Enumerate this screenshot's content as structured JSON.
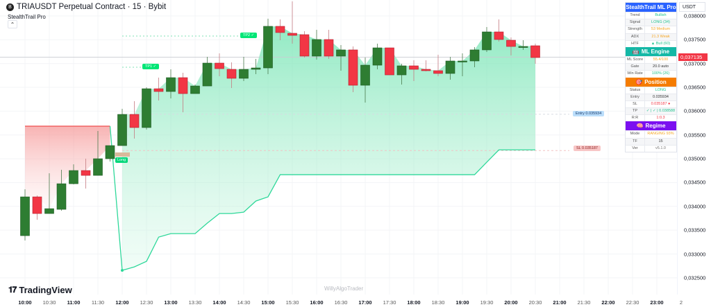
{
  "header": {
    "symbol_icon": "bybit-logo-icon",
    "title": "TRIAUSDT Perpetual Contract · 15 · Bybit",
    "indicator": "StealthTrail Pro",
    "collapse_icon": "chevron-up-icon"
  },
  "branding": {
    "logo": "TradingView",
    "watermark": "WillyAlgoTrader"
  },
  "price_axis": {
    "currency": "USDT",
    "labels": [
      "0,038000",
      "0,037500",
      "0,037000",
      "0,036500",
      "0,036000",
      "0,035500",
      "0,035000",
      "0,034500",
      "0,034000",
      "0,033500",
      "0,033000",
      "0,032500"
    ],
    "last_price": "0,037135",
    "last_price_color": "#f23645"
  },
  "time_axis": {
    "labels": [
      "10:00",
      "10:30",
      "11:00",
      "11:30",
      "12:00",
      "12:30",
      "13:00",
      "13:30",
      "14:00",
      "14:30",
      "15:00",
      "15:30",
      "16:00",
      "16:30",
      "17:00",
      "17:30",
      "18:00",
      "18:30",
      "19:00",
      "19:30",
      "20:00",
      "20:30",
      "21:00",
      "21:30",
      "22:00",
      "22:30",
      "23:00",
      "2"
    ]
  },
  "panel": {
    "title": "StealthTrail ML Pro",
    "title_color": "#2962ff",
    "main_rows": [
      {
        "k": "Trend",
        "v": "Bullish",
        "c": "#22c38e"
      },
      {
        "k": "Signal",
        "v": "LONG (34)",
        "c": "#22c38e"
      },
      {
        "k": "Strength",
        "v": "53 Medium",
        "c": "#f5a623"
      },
      {
        "k": "ADX",
        "v": "21.3 Weak",
        "c": "#f5a623"
      },
      {
        "k": "HTF",
        "v": "▲ Bull (60)",
        "c": "#22c38e"
      }
    ],
    "ml_title": "ML Engine",
    "ml_color": "#14b8a6",
    "ml_rows": [
      {
        "k": "ML Score",
        "v": "55.4/100",
        "c": "#f5a623"
      },
      {
        "k": "Gate",
        "v": "20.0 auto",
        "c": "#333333"
      },
      {
        "k": "Win Rate",
        "v": "100% (26)",
        "c": "#22c38e"
      }
    ],
    "pos_title": "Position",
    "pos_color": "#f57c00",
    "pos_rows": [
      {
        "k": "Status",
        "v": "LONG",
        "c": "#22c38e"
      },
      {
        "k": "Entry",
        "v": "0.035934",
        "c": "#333333"
      },
      {
        "k": "SL",
        "v": "0.035187 ●",
        "c": "#f23645"
      },
      {
        "k": "TP",
        "v": "✓ | ✓ | 0.038588",
        "c": "#22c38e"
      },
      {
        "k": "R:R",
        "v": "1:0.3",
        "c": "#f23645"
      }
    ],
    "reg_title": "Regime",
    "reg_color": "#7b10f0",
    "reg_rows": [
      {
        "k": "Mode",
        "v": "RANGING 93%",
        "c": "#f5a623"
      },
      {
        "k": "TF",
        "v": "15",
        "c": "#333333"
      },
      {
        "k": "Ver",
        "v": "v5.1.0",
        "c": "#777777"
      }
    ]
  },
  "labels": {
    "tp1": "TP1 ✓",
    "tp2": "TP2 ✓",
    "entry": "Entry 0.035934",
    "sl": "SL 0.035187",
    "signal": "Long"
  },
  "chart_data": {
    "type": "candlestick",
    "interval": "15",
    "start": "10:00",
    "ylim": [
      0.0324,
      0.0384
    ],
    "colors": {
      "up": "#2e7d32",
      "down": "#f23645",
      "trail_bull": "#2ed89a",
      "trail_bear": "#f05a5a"
    },
    "ohlc": [
      [
        0.033385,
        0.03436,
        0.033283,
        0.0342
      ],
      [
        0.0342,
        0.034229,
        0.033719,
        0.03385
      ],
      [
        0.03385,
        0.034695,
        0.03385,
        0.033952
      ],
      [
        0.033938,
        0.034768,
        0.033909,
        0.034476
      ],
      [
        0.034476,
        0.034884,
        0.034462,
        0.034753
      ],
      [
        0.034753,
        0.035001,
        0.034374,
        0.034651
      ],
      [
        0.034651,
        0.035583,
        0.034651,
        0.035001
      ],
      [
        0.035001,
        0.035277,
        0.034942,
        0.035277
      ],
      [
        0.035277,
        0.036049,
        0.035277,
        0.035932
      ],
      [
        0.035932,
        0.036209,
        0.035423,
        0.035656
      ],
      [
        0.035656,
        0.0365,
        0.035612,
        0.036471
      ],
      [
        0.036471,
        0.036704,
        0.036224,
        0.036413
      ],
      [
        0.036413,
        0.036879,
        0.036267,
        0.036704
      ],
      [
        0.036704,
        0.036806,
        0.035976,
        0.036369
      ],
      [
        0.036369,
        0.036559,
        0.036369,
        0.036529
      ],
      [
        0.036529,
        0.037141,
        0.036529,
        0.03701
      ],
      [
        0.03701,
        0.037214,
        0.036733,
        0.036893
      ],
      [
        0.036879,
        0.037024,
        0.036486,
        0.03669
      ],
      [
        0.03669,
        0.037141,
        0.036631,
        0.036879
      ],
      [
        0.036879,
        0.037097,
        0.036777,
        0.036908
      ],
      [
        0.036908,
        0.037942,
        0.036777,
        0.037782
      ],
      [
        0.037782,
        0.037927,
        0.03749,
        0.037651
      ],
      [
        0.037636,
        0.038306,
        0.037418,
        0.037592
      ],
      [
        0.037607,
        0.03768,
        0.037126,
        0.037156
      ],
      [
        0.037156,
        0.037709,
        0.037083,
        0.037505
      ],
      [
        0.037505,
        0.037709,
        0.037097,
        0.037156
      ],
      [
        0.037156,
        0.037388,
        0.03685,
        0.037287
      ],
      [
        0.037287,
        0.037359,
        0.036398,
        0.036544
      ],
      [
        0.036544,
        0.037126,
        0.03618,
        0.036966
      ],
      [
        0.036966,
        0.037418,
        0.036879,
        0.03733
      ],
      [
        0.03733,
        0.03733,
        0.036762,
        0.036762
      ],
      [
        0.036762,
        0.036995,
        0.036559,
        0.036952
      ],
      [
        0.036952,
        0.037068,
        0.036631,
        0.036879
      ],
      [
        0.036879,
        0.037068,
        0.036835,
        0.03685
      ],
      [
        0.03685,
        0.037185,
        0.036733,
        0.036792
      ],
      [
        0.036792,
        0.037141,
        0.03666,
        0.037054
      ],
      [
        0.037054,
        0.037214,
        0.036733,
        0.037054
      ],
      [
        0.037054,
        0.037345,
        0.036923,
        0.037287
      ],
      [
        0.037287,
        0.037767,
        0.037243,
        0.037665
      ],
      [
        0.037665,
        0.037927,
        0.037461,
        0.037505
      ],
      [
        0.03749,
        0.037549,
        0.03717,
        0.037359
      ],
      [
        0.037359,
        0.03749,
        0.037287,
        0.037359
      ],
      [
        0.037374,
        0.037418,
        0.036995,
        0.037126
      ]
    ],
    "trail": [
      0.035685,
      0.035685,
      0.035685,
      0.035685,
      0.035685,
      0.035685,
      0.035685,
      0.035685,
      0.032656,
      0.032729,
      0.032846,
      0.033355,
      0.033428,
      0.033428,
      0.033428,
      0.033647,
      0.03385,
      0.03385,
      0.033879,
      0.034112,
      0.0342,
      0.034666,
      0.034666,
      0.034666,
      0.034666,
      0.034666,
      0.034666,
      0.034666,
      0.034666,
      0.034666,
      0.034666,
      0.034666,
      0.034666,
      0.034666,
      0.034666,
      0.034666,
      0.034666,
      0.034666,
      0.034928,
      0.035187,
      0.035187,
      0.035187,
      0.035187
    ],
    "trail_direction_change_index": 8,
    "levels": {
      "entry": 0.035934,
      "sl": 0.035187,
      "tp1": 0.036923,
      "tp2": 0.037578,
      "last": 0.037135
    }
  }
}
